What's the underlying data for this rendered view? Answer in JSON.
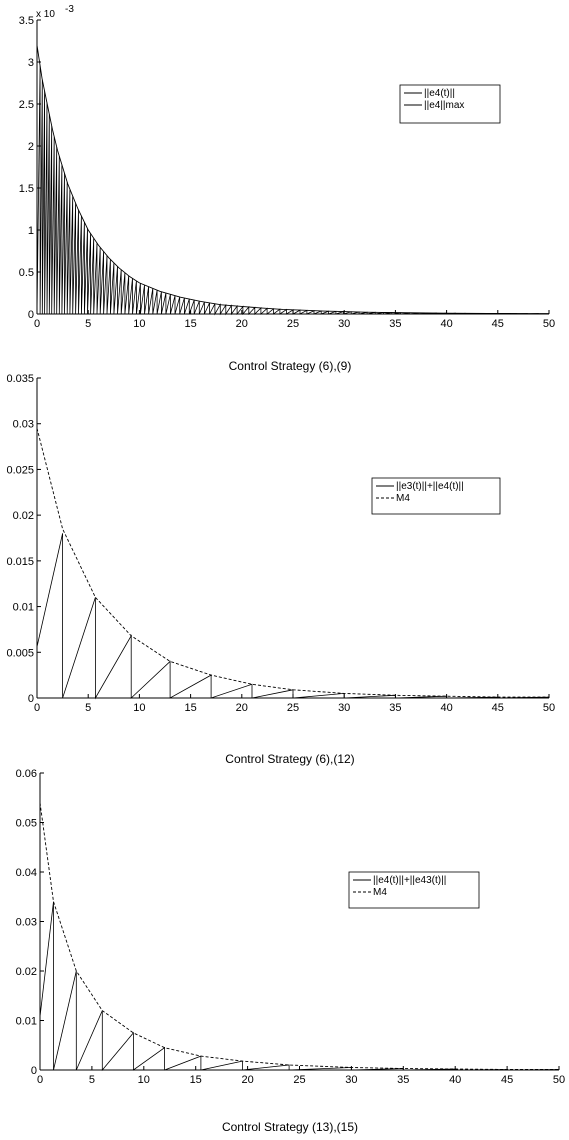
{
  "chart_data": [
    {
      "type": "line",
      "caption": "Control Strategy (6),(9)",
      "y_exponent": "x 10",
      "y_exponent_power": "-3",
      "xlim": [
        0,
        50
      ],
      "ylim": [
        0,
        3.5
      ],
      "xticks": [
        "0",
        "5",
        "10",
        "15",
        "20",
        "25",
        "30",
        "35",
        "40",
        "45",
        "50"
      ],
      "yticks": [
        "0",
        "0.5",
        "1",
        "1.5",
        "2",
        "2.5",
        "3",
        "3.5"
      ],
      "grid": false,
      "legend_position": "top-right",
      "series": [
        {
          "name": "||e4(t)||",
          "style": "solid",
          "kind": "sawtooth",
          "x": [
            0,
            0.5,
            1,
            1.5,
            2,
            2.5,
            3,
            4,
            5,
            6,
            7,
            8,
            9,
            10,
            12,
            14,
            16,
            18,
            20,
            22,
            24,
            26,
            28,
            30,
            32,
            34,
            36,
            38,
            40,
            42,
            44,
            46,
            48,
            50
          ],
          "y": [
            3.2,
            2.8,
            2.5,
            2.2,
            1.95,
            1.75,
            1.55,
            1.25,
            1.0,
            0.82,
            0.67,
            0.55,
            0.45,
            0.37,
            0.27,
            0.2,
            0.15,
            0.11,
            0.09,
            0.07,
            0.055,
            0.045,
            0.035,
            0.028,
            0.022,
            0.018,
            0.015,
            0.012,
            0.01,
            0.008,
            0.007,
            0.006,
            0.005,
            0.005
          ]
        },
        {
          "name": "||e4||max",
          "style": "solid",
          "kind": "envelope",
          "x": [
            0,
            0.5,
            1,
            1.5,
            2,
            2.5,
            3,
            4,
            5,
            6,
            7,
            8,
            9,
            10,
            12,
            14,
            16,
            18,
            20,
            22,
            24,
            26,
            28,
            30,
            32,
            34,
            36,
            38,
            40,
            42,
            44,
            46,
            48,
            50
          ],
          "y": [
            3.2,
            2.8,
            2.5,
            2.2,
            1.95,
            1.75,
            1.55,
            1.25,
            1.0,
            0.82,
            0.67,
            0.55,
            0.45,
            0.37,
            0.27,
            0.2,
            0.15,
            0.11,
            0.09,
            0.07,
            0.055,
            0.045,
            0.035,
            0.028,
            0.022,
            0.018,
            0.015,
            0.012,
            0.01,
            0.008,
            0.007,
            0.006,
            0.005,
            0.005
          ]
        }
      ]
    },
    {
      "type": "line",
      "caption": "Control Strategy (6),(12)",
      "xlim": [
        0,
        50
      ],
      "ylim": [
        0,
        0.035
      ],
      "xticks": [
        "0",
        "5",
        "10",
        "15",
        "20",
        "25",
        "30",
        "35",
        "40",
        "45",
        "50"
      ],
      "yticks": [
        "0",
        "0.005",
        "0.01",
        "0.015",
        "0.02",
        "0.025",
        "0.03",
        "0.035"
      ],
      "grid": false,
      "legend_position": "top-right",
      "series": [
        {
          "name": "||e3(t)||+||e4(t)||",
          "style": "solid",
          "kind": "sawtooth",
          "x": [
            0,
            2.5,
            5.7,
            9.2,
            13,
            17,
            21,
            25,
            30,
            35,
            40,
            45,
            50
          ],
          "y": [
            0.028,
            0.018,
            0.011,
            0.0068,
            0.004,
            0.0025,
            0.0015,
            0.0009,
            0.0005,
            0.0003,
            0.0002,
            0.0001,
            0.0001
          ]
        },
        {
          "name": "M4",
          "style": "dashed",
          "kind": "envelope",
          "x": [
            0,
            2.5,
            5.7,
            9.2,
            13,
            17,
            21,
            25,
            30,
            35,
            40,
            45,
            50
          ],
          "y": [
            0.0295,
            0.0185,
            0.011,
            0.0068,
            0.004,
            0.0025,
            0.0015,
            0.0009,
            0.0005,
            0.0003,
            0.0002,
            0.0001,
            0.0001
          ]
        }
      ]
    },
    {
      "type": "line",
      "caption": "Control Strategy (13),(15)",
      "xlim": [
        0,
        50
      ],
      "ylim": [
        0,
        0.06
      ],
      "xticks": [
        "0",
        "5",
        "10",
        "15",
        "20",
        "25",
        "30",
        "35",
        "40",
        "45",
        "50"
      ],
      "yticks": [
        "0",
        "0.01",
        "0.02",
        "0.03",
        "0.04",
        "0.05",
        "0.06"
      ],
      "grid": false,
      "legend_position": "top-right",
      "series": [
        {
          "name": "||e4(t)||+||e43(t)||",
          "style": "solid",
          "kind": "sawtooth",
          "x": [
            0,
            1.3,
            3.5,
            6,
            9,
            12,
            15.5,
            19.5,
            24,
            30,
            35,
            40,
            45,
            50
          ],
          "y": [
            0.054,
            0.034,
            0.02,
            0.012,
            0.0075,
            0.0045,
            0.0028,
            0.0018,
            0.001,
            0.0005,
            0.0003,
            0.0002,
            0.0001,
            0.0001
          ]
        },
        {
          "name": "M4",
          "style": "dashed",
          "kind": "envelope",
          "x": [
            0,
            1.3,
            3.5,
            6,
            9,
            12,
            15.5,
            19.5,
            24,
            30,
            35,
            40,
            45,
            50
          ],
          "y": [
            0.054,
            0.034,
            0.02,
            0.012,
            0.0075,
            0.0045,
            0.0028,
            0.0018,
            0.001,
            0.0005,
            0.0003,
            0.0002,
            0.0001,
            0.0001
          ]
        }
      ]
    }
  ]
}
